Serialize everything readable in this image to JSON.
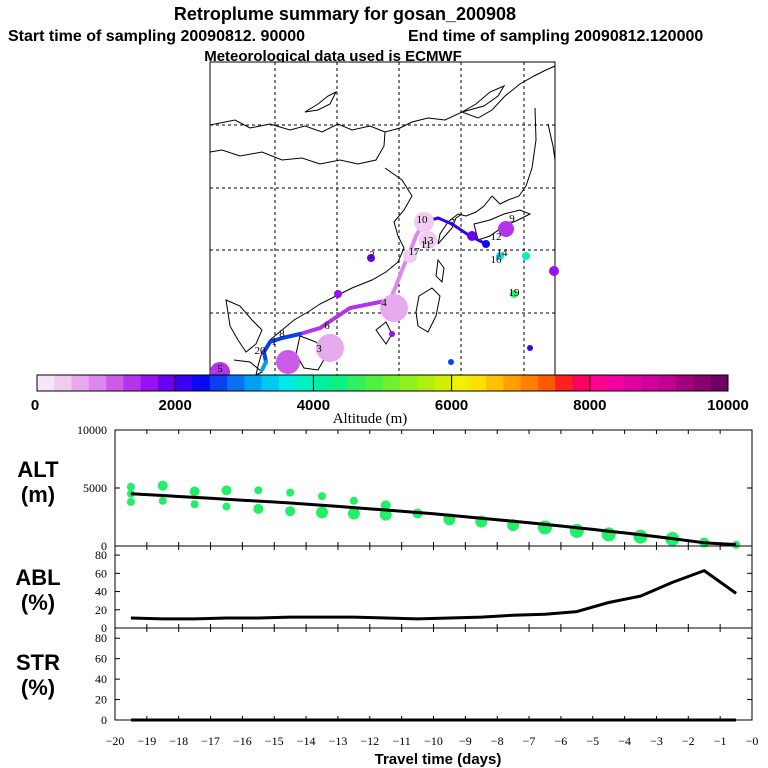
{
  "header": {
    "title": "Retroplume summary for gosan_200908",
    "start_label": "Start time of sampling 20090812. 90000",
    "end_label": "End time of sampling 20090812.120000",
    "met_label": "Meteorological data used is ECMWF"
  },
  "colorbar": {
    "min_label": "0",
    "ticks": [
      "2000",
      "4000",
      "6000",
      "8000",
      "10000"
    ],
    "label": "Altitude (m)",
    "colors": [
      "#f7e6f7",
      "#f0ccf0",
      "#e8aaef",
      "#dc88ec",
      "#cc5ce8",
      "#b434ec",
      "#9a10f0",
      "#6a00f0",
      "#3a00f0",
      "#0a08f0",
      "#0a40f0",
      "#0a70f0",
      "#00a0f0",
      "#00c8f0",
      "#00e8e8",
      "#00f0c0",
      "#00f0a0",
      "#10f080",
      "#30f060",
      "#50f040",
      "#70f030",
      "#90f020",
      "#b0f010",
      "#d0f000",
      "#f0f000",
      "#ffe000",
      "#ffc000",
      "#ffa000",
      "#ff8000",
      "#ff5a00",
      "#ff2020",
      "#ff0060",
      "#ff0090",
      "#f000a0",
      "#e000a0",
      "#d0009a",
      "#c00090",
      "#a00080",
      "#880070",
      "#700060"
    ]
  },
  "map": {
    "plume_labels": [
      "1",
      "2",
      "3",
      "4",
      "5",
      "6",
      "7",
      "8",
      "9",
      "10",
      "11",
      "12",
      "13",
      "14",
      "16",
      "17",
      "19",
      "20"
    ]
  },
  "chart_data": [
    {
      "type": "line",
      "panel": "ALT",
      "ylabel_line1": "ALT",
      "ylabel_line2": "(m)",
      "ylim": [
        0,
        10000
      ],
      "yticks": [
        "10000",
        "5000",
        "0"
      ],
      "ytick_values": [
        10000,
        5000,
        0
      ],
      "series": [
        {
          "name": "mean altitude",
          "x": [
            -19.5,
            -19,
            -18.5,
            -18,
            -17.5,
            -17,
            -16.5,
            -16,
            -15.5,
            -15,
            -14.5,
            -14,
            -13.5,
            -13,
            -12.5,
            -12,
            -11.5,
            -11,
            -10.5,
            -10,
            -9.5,
            -9,
            -8.5,
            -8,
            -7.5,
            -7,
            -6.5,
            -6,
            -5.5,
            -5,
            -4.5,
            -4,
            -3.5,
            -3,
            -2.5,
            -2,
            -1.5,
            -1,
            -0.5
          ],
          "y": [
            4500,
            4430,
            4350,
            4270,
            4190,
            4110,
            4030,
            3950,
            3870,
            3790,
            3710,
            3610,
            3510,
            3410,
            3310,
            3200,
            3100,
            2990,
            2890,
            2780,
            2650,
            2530,
            2400,
            2270,
            2140,
            2000,
            1860,
            1720,
            1570,
            1430,
            1280,
            1130,
            970,
            810,
            640,
            460,
            280,
            200,
            130
          ]
        }
      ],
      "markers": [
        {
          "x": -19.5,
          "y": 5100,
          "r": 4
        },
        {
          "x": -19.5,
          "y": 3800,
          "r": 4
        },
        {
          "x": -19.5,
          "y": 4500,
          "r": 4
        },
        {
          "x": -18.5,
          "y": 5200,
          "r": 5
        },
        {
          "x": -18.5,
          "y": 3900,
          "r": 4
        },
        {
          "x": -17.5,
          "y": 4700,
          "r": 5
        },
        {
          "x": -17.5,
          "y": 3600,
          "r": 4
        },
        {
          "x": -16.5,
          "y": 4800,
          "r": 5
        },
        {
          "x": -16.5,
          "y": 3400,
          "r": 4
        },
        {
          "x": -15.5,
          "y": 4800,
          "r": 4
        },
        {
          "x": -15.5,
          "y": 3200,
          "r": 5
        },
        {
          "x": -14.5,
          "y": 4600,
          "r": 4
        },
        {
          "x": -14.5,
          "y": 3000,
          "r": 5
        },
        {
          "x": -13.5,
          "y": 4300,
          "r": 4
        },
        {
          "x": -13.5,
          "y": 2900,
          "r": 6
        },
        {
          "x": -12.5,
          "y": 3900,
          "r": 4
        },
        {
          "x": -12.5,
          "y": 2800,
          "r": 6
        },
        {
          "x": -11.5,
          "y": 3500,
          "r": 5
        },
        {
          "x": -11.5,
          "y": 2700,
          "r": 6
        },
        {
          "x": -10.5,
          "y": 2800,
          "r": 5
        },
        {
          "x": -9.5,
          "y": 2300,
          "r": 6
        },
        {
          "x": -8.5,
          "y": 2100,
          "r": 6
        },
        {
          "x": -7.5,
          "y": 1800,
          "r": 6
        },
        {
          "x": -6.5,
          "y": 1600,
          "r": 7
        },
        {
          "x": -5.5,
          "y": 1300,
          "r": 7
        },
        {
          "x": -4.5,
          "y": 1000,
          "r": 7
        },
        {
          "x": -3.5,
          "y": 800,
          "r": 7
        },
        {
          "x": -2.5,
          "y": 600,
          "r": 7
        },
        {
          "x": -1.5,
          "y": 300,
          "r": 5
        },
        {
          "x": -0.5,
          "y": 100,
          "r": 4
        }
      ],
      "marker_color": "#22ee66"
    },
    {
      "type": "line",
      "panel": "ABL",
      "ylabel_line1": "ABL",
      "ylabel_line2": "(%)",
      "ylim": [
        0,
        90
      ],
      "yticks": [
        "80",
        "60",
        "40",
        "20",
        "0"
      ],
      "ytick_values": [
        80,
        60,
        40,
        20,
        0
      ],
      "series": [
        {
          "name": "fraction in ABL",
          "x": [
            -19.5,
            -18.5,
            -17.5,
            -16.5,
            -15.5,
            -14.5,
            -13.5,
            -12.5,
            -11.5,
            -10.5,
            -9.5,
            -8.5,
            -7.5,
            -6.5,
            -5.5,
            -4.5,
            -3.5,
            -2.5,
            -1.5,
            -0.5
          ],
          "y": [
            11,
            10,
            10,
            11,
            11,
            12,
            12,
            12,
            11,
            10,
            11,
            12,
            14,
            15,
            18,
            28,
            35,
            50,
            63,
            38
          ]
        }
      ]
    },
    {
      "type": "line",
      "panel": "STR",
      "ylabel_line1": "STR",
      "ylabel_line2": "(%)",
      "ylim": [
        0,
        90
      ],
      "yticks": [
        "80",
        "60",
        "40",
        "20",
        "0"
      ],
      "ytick_values": [
        80,
        60,
        40,
        20,
        0
      ],
      "series": [
        {
          "name": "fraction in stratosphere",
          "x": [
            -19.5,
            -15,
            -10,
            -5,
            -0.5
          ],
          "y": [
            0,
            0,
            0,
            0,
            0
          ]
        }
      ]
    }
  ],
  "xaxis": {
    "label": "Travel time (days)",
    "range": [
      -20,
      0
    ],
    "ticks": [
      "−20",
      "−19",
      "−18",
      "−17",
      "−16",
      "−15",
      "−14",
      "−13",
      "−12",
      "−11",
      "−10",
      "−9",
      "−8",
      "−7",
      "−6",
      "−5",
      "−4",
      "−3",
      "−2",
      "−1",
      "−0"
    ],
    "tick_values": [
      -20,
      -19,
      -18,
      -17,
      -16,
      -15,
      -14,
      -13,
      -12,
      -11,
      -10,
      -9,
      -8,
      -7,
      -6,
      -5,
      -4,
      -3,
      -2,
      -1,
      0
    ]
  }
}
